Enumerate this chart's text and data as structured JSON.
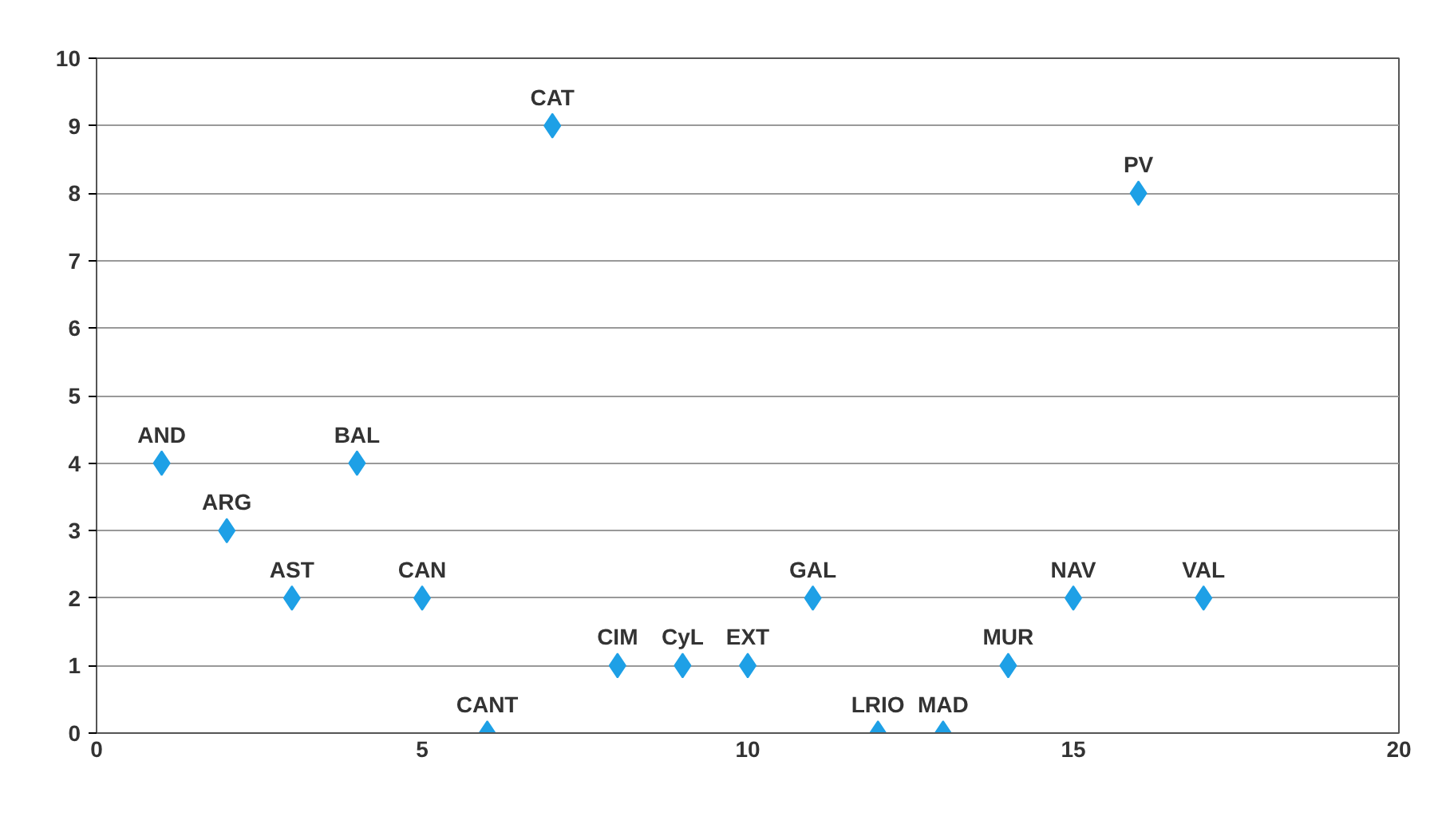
{
  "chart_data": {
    "type": "scatter",
    "marker": "diamond",
    "grid": "y",
    "x": [
      1,
      2,
      3,
      4,
      5,
      6,
      7,
      8,
      9,
      10,
      11,
      12,
      13,
      14,
      15,
      16,
      17
    ],
    "series": [
      {
        "color": "#1ea0e6",
        "values": [
          4,
          3,
          2,
          4,
          2,
          0,
          9,
          1,
          1,
          1,
          2,
          0,
          0,
          1,
          2,
          8,
          2
        ]
      }
    ],
    "xlim": [
      0,
      20
    ],
    "ylim": [
      0,
      10
    ],
    "xticks": [
      0,
      5,
      10,
      15,
      20
    ],
    "yticks": [
      0,
      1,
      2,
      3,
      4,
      5,
      6,
      7,
      8,
      9,
      10
    ],
    "annotations": [
      {
        "text": "AND",
        "x": 1,
        "y": 4
      },
      {
        "text": "ARG",
        "x": 2,
        "y": 3
      },
      {
        "text": "AST",
        "x": 3,
        "y": 2
      },
      {
        "text": "BAL",
        "x": 4,
        "y": 4
      },
      {
        "text": "CAN",
        "x": 5,
        "y": 2
      },
      {
        "text": "CANT",
        "x": 6,
        "y": 0
      },
      {
        "text": "CAT",
        "x": 7,
        "y": 9
      },
      {
        "text": "CIM",
        "x": 8,
        "y": 1
      },
      {
        "text": "CyL",
        "x": 9,
        "y": 1
      },
      {
        "text": "EXT",
        "x": 10,
        "y": 1
      },
      {
        "text": "GAL",
        "x": 11,
        "y": 2
      },
      {
        "text": "LRIO",
        "x": 12,
        "y": 0
      },
      {
        "text": "MAD",
        "x": 13,
        "y": 0
      },
      {
        "text": "MUR",
        "x": 14,
        "y": 1
      },
      {
        "text": "NAV",
        "x": 15,
        "y": 2
      },
      {
        "text": "PV",
        "x": 16,
        "y": 8
      },
      {
        "text": "VAL",
        "x": 17,
        "y": 2
      }
    ]
  }
}
